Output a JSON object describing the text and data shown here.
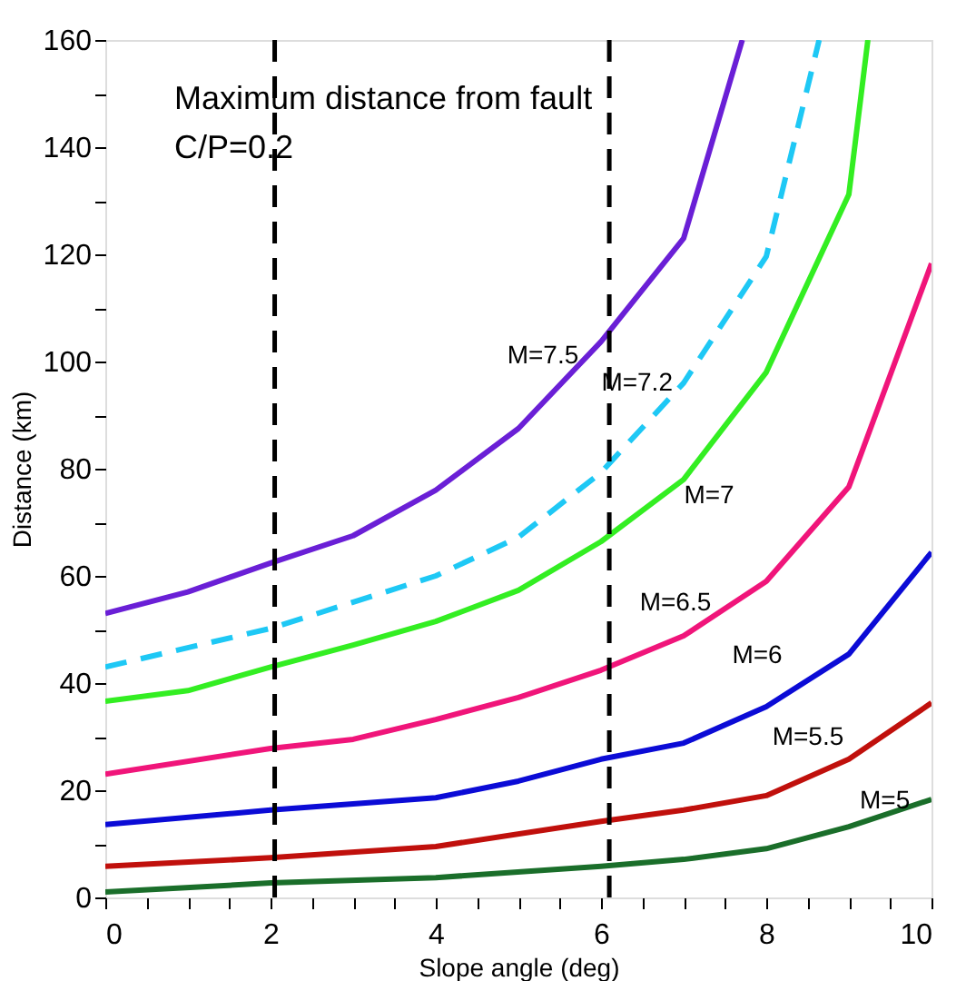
{
  "chart_data": {
    "type": "line",
    "xlabel": "Slope angle (deg)",
    "ylabel": "Distance (km)",
    "xlim": [
      0,
      10
    ],
    "ylim": [
      0,
      160
    ],
    "xticks": [
      0,
      {
        "value": 0.5,
        "label": null
      },
      {
        "value": 1,
        "label": null
      },
      {
        "value": 1.5,
        "label": null
      },
      2,
      {
        "value": 2.5,
        "label": null
      },
      {
        "value": 3,
        "label": null
      },
      {
        "value": 3.5,
        "label": null
      },
      4,
      {
        "value": 4.5,
        "label": null
      },
      {
        "value": 5,
        "label": null
      },
      {
        "value": 5.5,
        "label": null
      },
      6,
      {
        "value": 6.5,
        "label": null
      },
      {
        "value": 7,
        "label": null
      },
      {
        "value": 7.5,
        "label": null
      },
      8,
      {
        "value": 8.5,
        "label": null
      },
      {
        "value": 9,
        "label": null
      },
      {
        "value": 9.5,
        "label": null
      },
      10
    ],
    "yticks": [
      0,
      {
        "value": 10,
        "label": null
      },
      20,
      {
        "value": 30,
        "label": null
      },
      40,
      {
        "value": 50,
        "label": null
      },
      60,
      {
        "value": 70,
        "label": null
      },
      80,
      {
        "value": 90,
        "label": null
      },
      100,
      {
        "value": 110,
        "label": null
      },
      120,
      {
        "value": 130,
        "label": null
      },
      140,
      {
        "value": 150,
        "label": null
      },
      160
    ],
    "grid": false,
    "legend": false,
    "marker": "none",
    "line_style": "solid",
    "series": [
      {
        "name": "M=7.5",
        "color": "#6a1fd6",
        "x": [
          0,
          1,
          2,
          3,
          4,
          5,
          6,
          7,
          7.71
        ],
        "values": [
          53,
          57,
          62.4,
          67.5,
          76,
          87.5,
          103.7,
          123,
          160
        ]
      },
      {
        "name": "M=7.2",
        "color": "#1ec8f5",
        "line_style": "dashed",
        "x": [
          0,
          2,
          4,
          5,
          6,
          7,
          8,
          8.64
        ],
        "values": [
          43,
          50.2,
          60,
          67.2,
          79.3,
          96,
          119.6,
          160
        ]
      },
      {
        "name": "M=7",
        "color": "#33ee22",
        "x": [
          0,
          1,
          2,
          3,
          4,
          5,
          6,
          7,
          8,
          9,
          9.23
        ],
        "values": [
          36.6,
          38.6,
          43,
          47.1,
          51.5,
          57.3,
          66.4,
          78,
          98,
          131.2,
          160
        ]
      },
      {
        "name": "M=6.5",
        "color": "#f0157a",
        "x": [
          0,
          2,
          3,
          4,
          5,
          6,
          7,
          8,
          9,
          10
        ],
        "values": [
          23,
          27.8,
          29.5,
          33.2,
          37.3,
          42.4,
          48.8,
          59,
          76.6,
          118.3
        ]
      },
      {
        "name": "M=6",
        "color": "#0b0bd6",
        "x": [
          0,
          2,
          4,
          5,
          6,
          7,
          8,
          9,
          10
        ],
        "values": [
          13.6,
          16.3,
          18.6,
          21.7,
          25.8,
          28.8,
          35.6,
          45.4,
          64.4
        ]
      },
      {
        "name": "M=5.5",
        "color": "#c0100c",
        "x": [
          0,
          2,
          4,
          6,
          7,
          8,
          9,
          10
        ],
        "values": [
          5.8,
          7.4,
          9.5,
          14.2,
          16.3,
          19,
          25.8,
          36.3
        ]
      },
      {
        "name": "M=5",
        "color": "#1a6e2a",
        "x": [
          0,
          2,
          4,
          6,
          7,
          8,
          9,
          10
        ],
        "values": [
          1,
          2.7,
          3.7,
          5.8,
          7.1,
          9.1,
          13.2,
          18.3
        ]
      }
    ],
    "ref_lines": [
      {
        "axis": "x",
        "value": 2.05,
        "color": "#000000",
        "line_style": "dashed"
      },
      {
        "axis": "x",
        "value": 6.1,
        "color": "#000000",
        "line_style": "dashed"
      }
    ],
    "annotations": [
      "Maximum distance from fault",
      "C/P=0.2"
    ]
  }
}
